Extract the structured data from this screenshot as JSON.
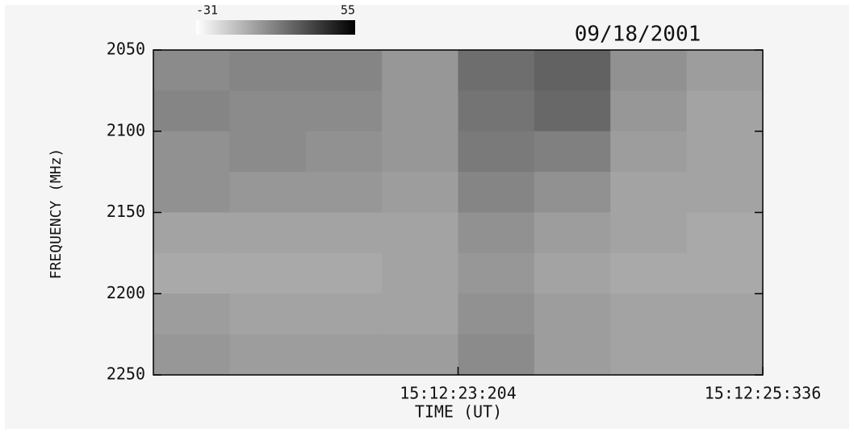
{
  "chart_data": {
    "type": "heatmap",
    "title": "09/18/2001",
    "x_label": "TIME (UT)",
    "y_label": "FREQUENCY (MHz)",
    "xbins": [
      21.072,
      21.605,
      22.138,
      22.671,
      23.204,
      23.737,
      24.27,
      24.803,
      25.336
    ],
    "ybins": [
      2050,
      2075,
      2100,
      2125,
      2150,
      2175,
      2200,
      2225,
      2250
    ],
    "z": [
      [
        8,
        10,
        10,
        4,
        18,
        22,
        6,
        2
      ],
      [
        10,
        8,
        8,
        4,
        16,
        20,
        4,
        0
      ],
      [
        6,
        8,
        6,
        4,
        14,
        12,
        2,
        0
      ],
      [
        6,
        4,
        4,
        2,
        10,
        6,
        0,
        0
      ],
      [
        0,
        0,
        0,
        0,
        6,
        2,
        0,
        -2
      ],
      [
        -2,
        -2,
        -2,
        0,
        4,
        0,
        -2,
        -2
      ],
      [
        2,
        0,
        0,
        0,
        6,
        2,
        0,
        0
      ],
      [
        4,
        2,
        2,
        2,
        8,
        2,
        0,
        0
      ]
    ],
    "zlim": [
      -31,
      55
    ],
    "xlim": [
      21.072,
      25.336
    ],
    "xticks": [
      {
        "value": 23.204,
        "label": "15:12:23:204"
      },
      {
        "value": 25.336,
        "label": "15:12:25:336"
      }
    ],
    "ylim": [
      2050,
      2250
    ],
    "y_reversed": true,
    "yticks": [
      2050,
      2100,
      2150,
      2200,
      2250
    ]
  }
}
